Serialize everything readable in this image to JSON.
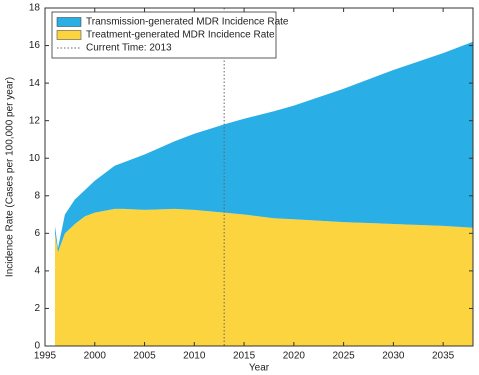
{
  "chart_data": {
    "type": "stacked_area",
    "x_label": "Year",
    "y_label": "Incidence Rate (Cases per 100,000 per year)",
    "x": [
      1996,
      1996.3,
      1997,
      1998,
      1999,
      2000,
      2001,
      2002,
      2003,
      2005,
      2008,
      2010,
      2013,
      2015,
      2018,
      2020,
      2025,
      2030,
      2035,
      2038
    ],
    "series": [
      {
        "name": "Transmission-generated MDR Incidence Rate",
        "color": "#29aee6",
        "values": [
          0.4,
          0.2,
          1.0,
          1.3,
          1.4,
          1.7,
          2.0,
          2.3,
          2.5,
          2.95,
          3.6,
          4.05,
          4.7,
          5.1,
          5.7,
          6.05,
          7.1,
          8.2,
          9.2,
          9.9
        ]
      },
      {
        "name": "Treatment-generated MDR Incidence Rate",
        "color": "#fbd440",
        "values": [
          6.0,
          5.0,
          6.0,
          6.5,
          6.9,
          7.1,
          7.2,
          7.3,
          7.3,
          7.25,
          7.3,
          7.25,
          7.1,
          7.0,
          6.8,
          6.75,
          6.6,
          6.5,
          6.4,
          6.3
        ]
      }
    ],
    "current_time": {
      "value": 2013,
      "label": "Current Time: 2013"
    },
    "xlim": [
      1995,
      2038
    ],
    "xticks": [
      1995,
      2000,
      2005,
      2010,
      2015,
      2020,
      2025,
      2030,
      2035
    ],
    "ylim": [
      0,
      18
    ],
    "yticks": [
      0,
      2,
      4,
      6,
      8,
      10,
      12,
      14,
      16,
      18
    ]
  }
}
